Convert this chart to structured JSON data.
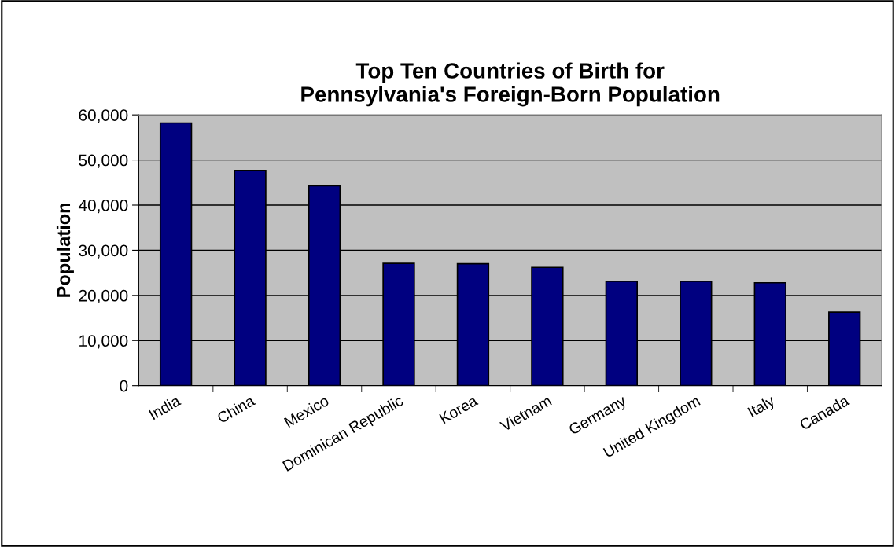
{
  "chart_data": {
    "type": "bar",
    "title": "Top Ten Countries of Birth for\nPennsylvania's Foreign-Born Population",
    "ylabel": "Population",
    "categories": [
      "India",
      "China",
      "Mexico",
      "Dominican Republic",
      "Korea",
      "Vietnam",
      "Germany",
      "United Kingdom",
      "Italy",
      "Canada"
    ],
    "values": [
      58200,
      47700,
      44300,
      27100,
      27000,
      26200,
      23100,
      23100,
      22800,
      16300
    ],
    "color": "#000080",
    "ylim": [
      0,
      60000
    ],
    "yticks": [
      {
        "value": 0,
        "label": "0"
      },
      {
        "value": 10000,
        "label": "10,000"
      },
      {
        "value": 20000,
        "label": "20,000"
      },
      {
        "value": 30000,
        "label": "30,000"
      },
      {
        "value": 40000,
        "label": "40,000"
      },
      {
        "value": 50000,
        "label": "50,000"
      },
      {
        "value": 60000,
        "label": "60,000"
      }
    ],
    "grid": "y"
  }
}
